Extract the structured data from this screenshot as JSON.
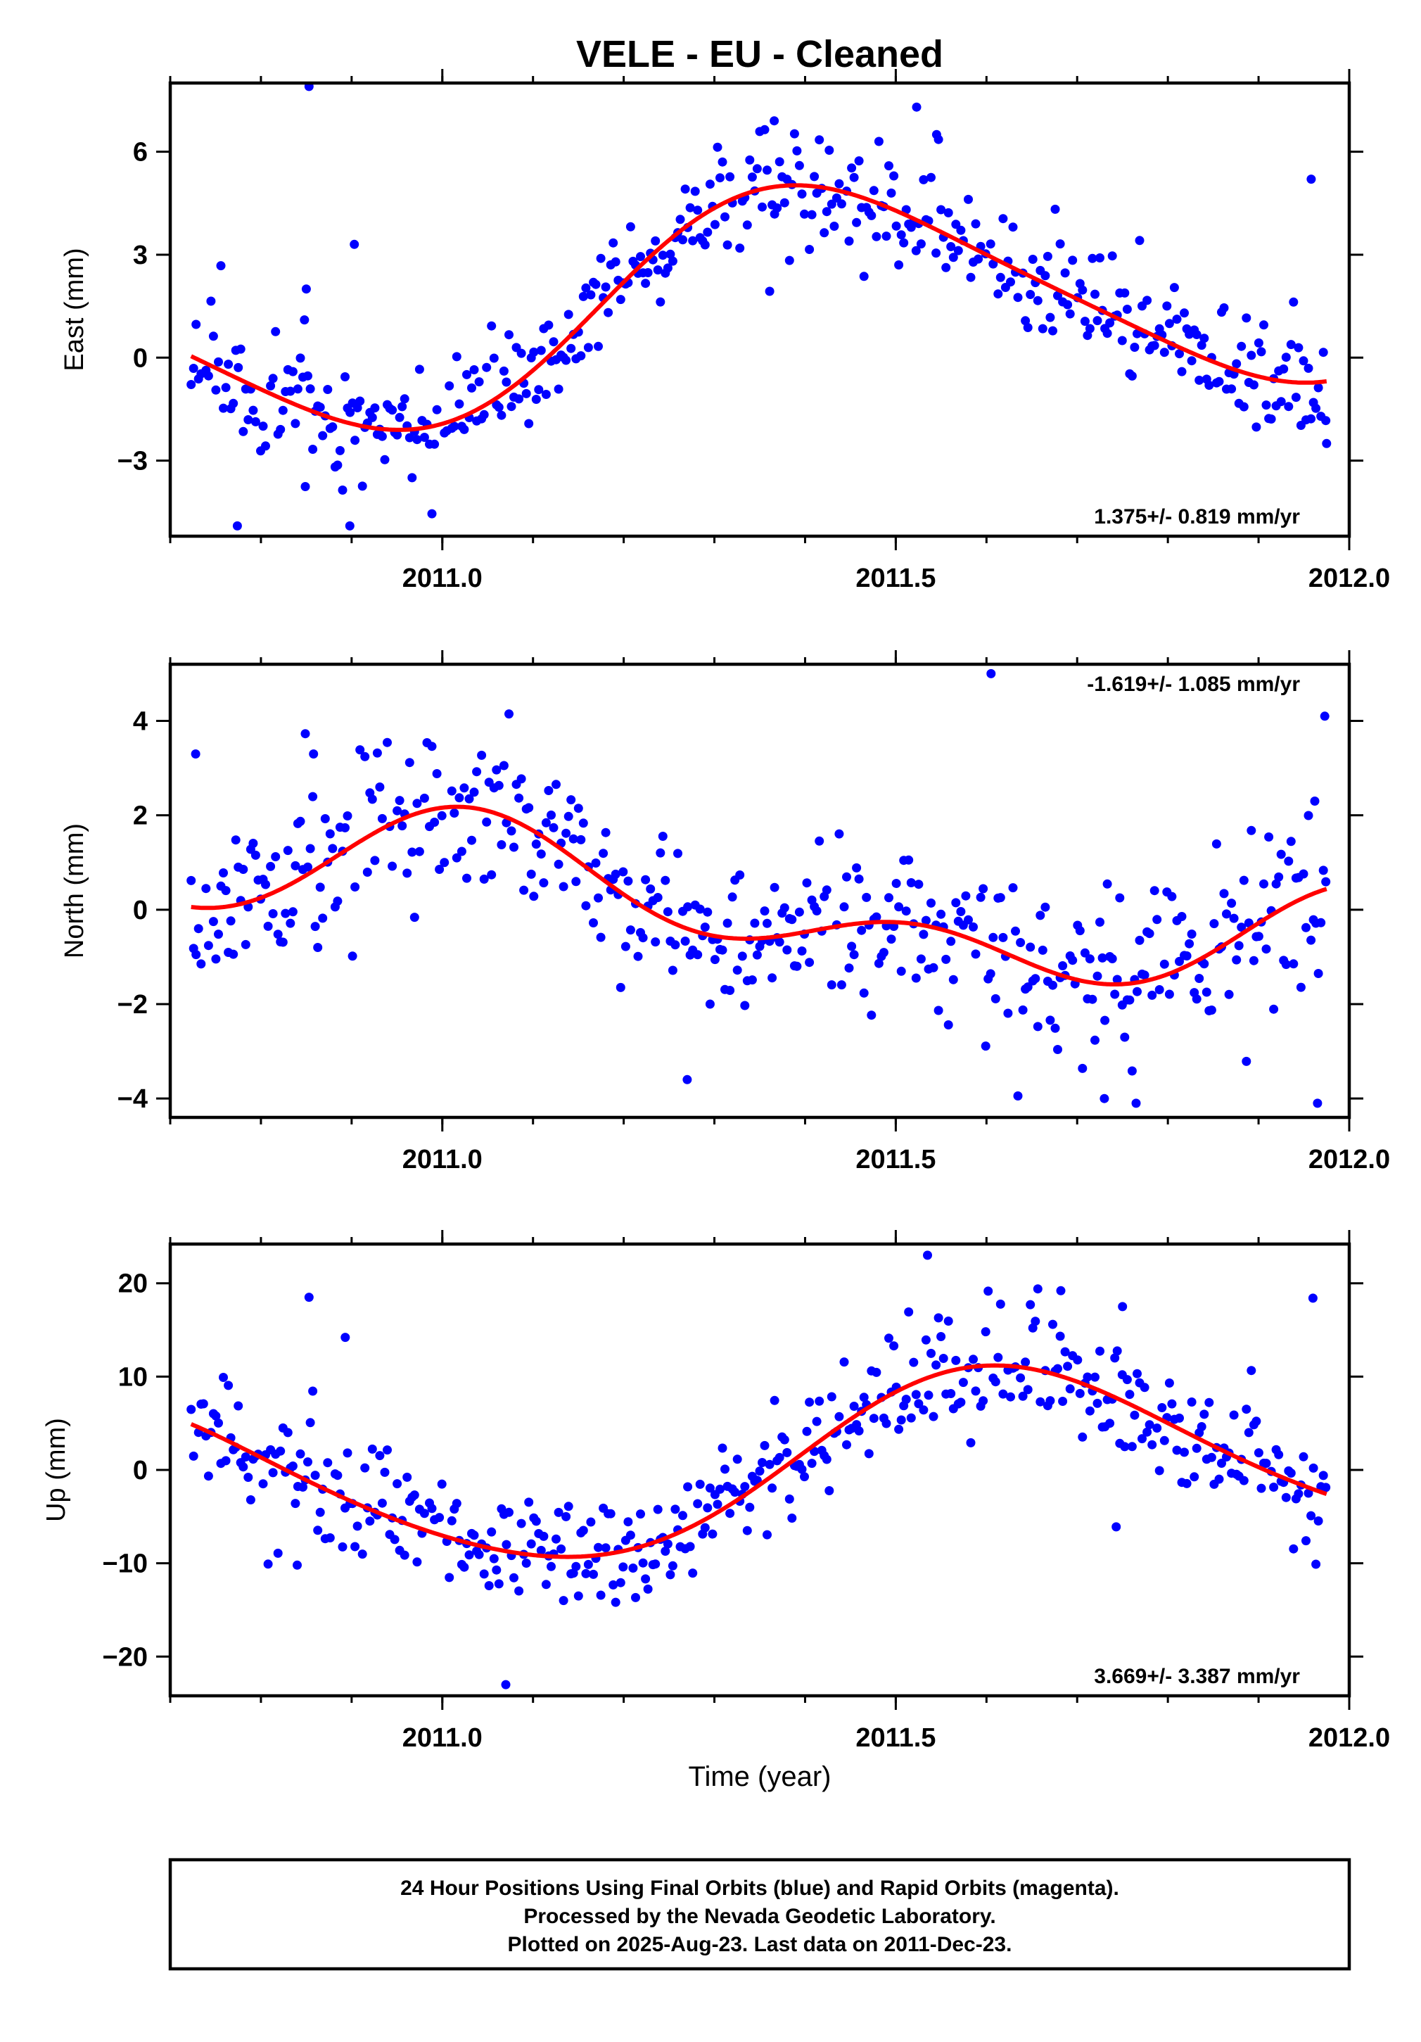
{
  "chart_data": {
    "type": "scatter",
    "title": "VELE  - EU - Cleaned",
    "xlabel": "Time (year)",
    "xlim": [
      2010.7,
      2012.0
    ],
    "x_ticks": [
      2011.0,
      2011.5,
      2012.0
    ],
    "x_tick_labels": [
      "2011.0",
      "2011.5",
      "2012.0"
    ],
    "point_color": "#0000ff",
    "fit_color": "#ff0000",
    "panels": [
      {
        "ylabel": "East (mm)",
        "ylim": [
          -5.2,
          8.0
        ],
        "y_ticks": [
          -3,
          0,
          3,
          6
        ],
        "y_tick_labels": [
          "−3",
          "0",
          "3",
          "6"
        ],
        "rate_label": "1.375+/- 0.819 mm/yr",
        "rate_position": "bottom-right",
        "fit": {
          "offset": 1.68,
          "trend": 1.375,
          "t0": 2011.35,
          "amp1": 3.15,
          "phase1": 2011.42,
          "amp2": 0.45,
          "phase2": 2011.3
        },
        "noise": 0.9,
        "outliers": [
          [
            2010.853,
            7.9
          ],
          [
            2010.85,
            2.0
          ],
          [
            2010.848,
            1.1
          ],
          [
            2010.903,
            3.3
          ],
          [
            2010.898,
            -4.9
          ],
          [
            2010.774,
            -4.9
          ],
          [
            2011.523,
            7.3
          ],
          [
            2011.545,
            6.5
          ],
          [
            2011.958,
            5.2
          ],
          [
            2011.975,
            -2.5
          ],
          [
            2011.366,
            6.9
          ]
        ]
      },
      {
        "ylabel": "North (mm)",
        "ylim": [
          -4.4,
          5.2
        ],
        "y_ticks": [
          -4,
          -2,
          0,
          2,
          4
        ],
        "y_tick_labels": [
          "−4",
          "−2",
          "0",
          "2",
          "4"
        ],
        "rate_label": "-1.619+/- 1.085 mm/yr",
        "rate_position": "top-right",
        "fit": {
          "offset": 0.06,
          "trend": -1.619,
          "t0": 2011.35,
          "amp1": 0.85,
          "phase1": 2011.05,
          "amp2": 0.75,
          "phase2": 2011.02
        },
        "noise": 0.9,
        "outliers": [
          [
            2011.605,
            5.0
          ],
          [
            2011.973,
            4.1
          ],
          [
            2011.962,
            2.3
          ],
          [
            2010.728,
            3.3
          ],
          [
            2010.858,
            3.3
          ],
          [
            2011.27,
            -3.6
          ],
          [
            2011.965,
            -4.1
          ],
          [
            2011.765,
            -4.1
          ],
          [
            2011.73,
            -4.0
          ]
        ]
      },
      {
        "ylabel": "Up (mm)",
        "ylim": [
          -24.2,
          24.2
        ],
        "y_ticks": [
          -20,
          -10,
          0,
          10,
          20
        ],
        "y_tick_labels": [
          "−20",
          "−10",
          "0",
          "10",
          "20"
        ],
        "rate_label": "3.669+/- 3.387 mm/yr",
        "rate_position": "bottom-right",
        "fit": {
          "offset": 0.3,
          "trend": 3.669,
          "t0": 2011.35,
          "amp1": 9.3,
          "phase1": 2011.62,
          "amp2": 0.9,
          "phase2": 2011.55
        },
        "noise": 3.2,
        "outliers": [
          [
            2011.535,
            23.0
          ],
          [
            2011.07,
            -23.0
          ],
          [
            2010.853,
            18.5
          ],
          [
            2011.96,
            18.4
          ],
          [
            2011.682,
            19.2
          ],
          [
            2011.75,
            17.5
          ],
          [
            2010.893,
            14.2
          ],
          [
            2011.743,
            -6.1
          ],
          [
            2010.84,
            -10.2
          ]
        ]
      }
    ]
  },
  "footer": {
    "line1": "24 Hour Positions Using Final Orbits (blue) and Rapid Orbits (magenta).",
    "line2": "Processed by the Nevada Geodetic Laboratory.",
    "line3": "Plotted on 2025-Aug-23. Last data on 2011-Dec-23."
  }
}
